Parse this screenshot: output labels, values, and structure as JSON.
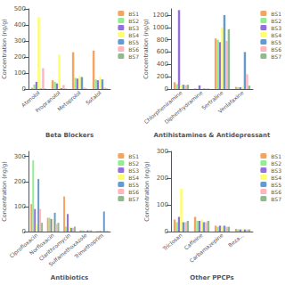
{
  "chart_data": [
    {
      "type": "bar",
      "xlabel": "Beta Blockers",
      "ylabel": "Concentration (ng/g)",
      "categories": [
        "Atenolol",
        "Propranolol",
        "Metoprolol",
        "Sotalol"
      ],
      "series": [
        {
          "name": "BS1",
          "color": "#f4a460",
          "values": [
            8,
            55,
            230,
            240
          ]
        },
        {
          "name": "BS2",
          "color": "#90ee90",
          "values": [
            28,
            45,
            70,
            60
          ]
        },
        {
          "name": "BS3",
          "color": "#9370db",
          "values": [
            45,
            35,
            65,
            55
          ]
        },
        {
          "name": "BS4",
          "color": "#ffff66",
          "values": [
            450,
            215,
            80,
            75
          ]
        },
        {
          "name": "BS5",
          "color": "#6699cc",
          "values": [
            3,
            6,
            75,
            60
          ]
        },
        {
          "name": "BS6",
          "color": "#ffb6c1",
          "values": [
            130,
            25,
            10,
            9
          ]
        },
        {
          "name": "BS7",
          "color": "#8fbc8f",
          "values": [
            3,
            3,
            3,
            3
          ]
        }
      ],
      "ylim": [
        0,
        500
      ],
      "yticks": [
        0,
        100,
        200,
        300,
        400,
        500
      ],
      "grid": false,
      "legend": "upper right"
    },
    {
      "type": "bar",
      "xlabel": "Antihistamines & Antidepressant",
      "ylabel": "Concentration (ng/g)",
      "categories": [
        "Chlorpheniramine",
        "Diphenhydramine",
        "Sertraline",
        "Venlafaxine"
      ],
      "series": [
        {
          "name": "BS1",
          "color": "#f4a460",
          "values": [
            110,
            10,
            820,
            35
          ]
        },
        {
          "name": "BS2",
          "color": "#90ee90",
          "values": [
            80,
            5,
            800,
            30
          ]
        },
        {
          "name": "BS3",
          "color": "#9370db",
          "values": [
            1280,
            60,
            760,
            30
          ]
        },
        {
          "name": "BS4",
          "color": "#ffff66",
          "values": [
            70,
            10,
            1000,
            35
          ]
        },
        {
          "name": "BS5",
          "color": "#6699cc",
          "values": [
            70,
            8,
            1200,
            600
          ]
        },
        {
          "name": "BS6",
          "color": "#ffb6c1",
          "values": [
            60,
            8,
            780,
            240
          ]
        },
        {
          "name": "BS7",
          "color": "#8fbc8f",
          "values": [
            70,
            8,
            970,
            55
          ]
        }
      ],
      "ylim": [
        0,
        1300
      ],
      "yticks": [
        0,
        200,
        400,
        600,
        800,
        1000,
        1200
      ],
      "grid": false,
      "legend": "upper right"
    },
    {
      "type": "bar",
      "xlabel": "Antibiotics",
      "ylabel": "Concentration (ng/g)",
      "categories": [
        "Ciprofloxacin",
        "Norfloxacin",
        "Clarithromycin",
        "Sulfamethoxazole",
        "Trimethoprim"
      ],
      "series": [
        {
          "name": "BS1",
          "color": "#f4a460",
          "values": [
            110,
            55,
            140,
            5,
            2
          ]
        },
        {
          "name": "BS2",
          "color": "#90ee90",
          "values": [
            285,
            55,
            20,
            5,
            2
          ]
        },
        {
          "name": "BS3",
          "color": "#9370db",
          "values": [
            90,
            50,
            70,
            2,
            2
          ]
        },
        {
          "name": "BS4",
          "color": "#ffff66",
          "values": [
            30,
            50,
            20,
            2,
            2
          ]
        },
        {
          "name": "BS5",
          "color": "#6699cc",
          "values": [
            210,
            75,
            15,
            5,
            80
          ]
        },
        {
          "name": "BS6",
          "color": "#ffb6c1",
          "values": [
            90,
            30,
            15,
            5,
            2
          ]
        },
        {
          "name": "BS7",
          "color": "#8fbc8f",
          "values": [
            35,
            35,
            20,
            5,
            2
          ]
        }
      ],
      "ylim": [
        0,
        320
      ],
      "yticks": [
        0,
        100,
        200,
        300
      ],
      "grid": false,
      "legend": "upper right"
    },
    {
      "type": "bar",
      "xlabel": "Other PPCPs",
      "ylabel": "Concentration (ng/g)",
      "categories": [
        "Triclosan",
        "Caffeine",
        "Carbamazepine",
        "Beza..."
      ],
      "series": [
        {
          "name": "BS1",
          "color": "#f4a460",
          "values": [
            45,
            55,
            22,
            10
          ]
        },
        {
          "name": "BS2",
          "color": "#90ee90",
          "values": [
            35,
            40,
            18,
            8
          ]
        },
        {
          "name": "BS3",
          "color": "#9370db",
          "values": [
            55,
            40,
            22,
            8
          ]
        },
        {
          "name": "BS4",
          "color": "#ffff66",
          "values": [
            160,
            45,
            18,
            8
          ]
        },
        {
          "name": "BS5",
          "color": "#6699cc",
          "values": [
            35,
            35,
            22,
            8
          ]
        },
        {
          "name": "BS6",
          "color": "#ffb6c1",
          "values": [
            35,
            35,
            18,
            8
          ]
        },
        {
          "name": "BS7",
          "color": "#8fbc8f",
          "values": [
            40,
            40,
            18,
            8
          ]
        }
      ],
      "ylim": [
        0,
        300
      ],
      "yticks": [
        0,
        100,
        200,
        300
      ],
      "grid": false,
      "legend": "upper right"
    }
  ]
}
